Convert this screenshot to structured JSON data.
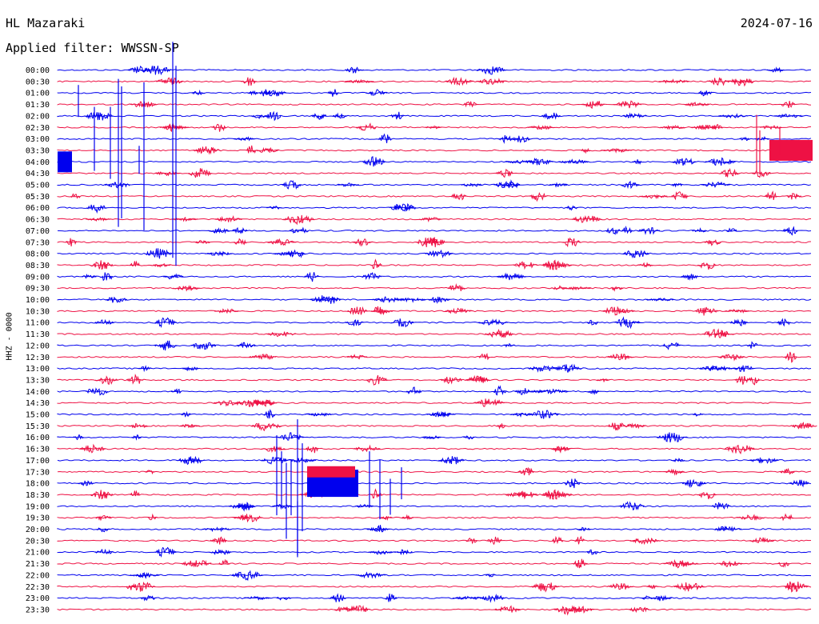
{
  "header": {
    "station": "HL Mazaraki",
    "date": "2024-07-16",
    "filter": "Applied filter: WWSSN-SP"
  },
  "colors": {
    "blue": "#0000ee",
    "red": "#ee1144"
  },
  "chart_data": {
    "type": "line",
    "ylabel": "HHZ - 0000",
    "row_labels": [
      "00:00",
      "00:30",
      "01:00",
      "01:30",
      "02:00",
      "02:30",
      "03:00",
      "03:30",
      "04:00",
      "04:30",
      "05:00",
      "05:30",
      "06:00",
      "06:30",
      "07:00",
      "07:30",
      "08:00",
      "08:30",
      "09:00",
      "09:30",
      "10:00",
      "10:30",
      "11:00",
      "11:30",
      "12:00",
      "12:30",
      "13:00",
      "13:30",
      "14:00",
      "14:30",
      "15:00",
      "15:30",
      "16:00",
      "16:30",
      "17:00",
      "17:30",
      "18:00",
      "18:30",
      "19:00",
      "19:30",
      "20:00",
      "20:30",
      "21:00",
      "21:30",
      "22:00",
      "22:30",
      "23:00",
      "23:30"
    ],
    "trace_colors": [
      "blue",
      "red"
    ],
    "row_interval_minutes": 30,
    "grid": false
  }
}
